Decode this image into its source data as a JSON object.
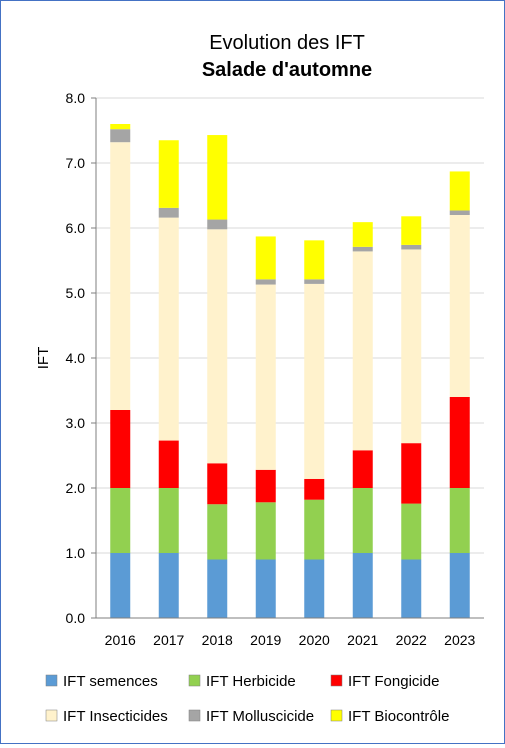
{
  "chart_data": {
    "type": "bar",
    "stacked": true,
    "title": "Evolution des IFT",
    "subtitle": "Salade d'automne",
    "xlabel": "",
    "ylabel": "IFT",
    "ylim": [
      0,
      8
    ],
    "yticks": [
      "0.0",
      "1.0",
      "2.0",
      "3.0",
      "4.0",
      "5.0",
      "6.0",
      "7.0",
      "8.0"
    ],
    "grid": true,
    "legend_position": "bottom",
    "categories": [
      "2016",
      "2017",
      "2018",
      "2019",
      "2020",
      "2021",
      "2022",
      "2023"
    ],
    "series": [
      {
        "name": "IFT semences",
        "color": "#5b9bd5",
        "values": [
          1.0,
          1.0,
          0.9,
          0.9,
          0.9,
          1.0,
          0.9,
          1.0
        ]
      },
      {
        "name": "IFT Herbicide",
        "color": "#92d050",
        "values": [
          1.0,
          1.0,
          0.85,
          0.88,
          0.92,
          1.0,
          0.86,
          1.0
        ]
      },
      {
        "name": "IFT Fongicide",
        "color": "#ff0000",
        "values": [
          1.2,
          0.73,
          0.63,
          0.5,
          0.32,
          0.58,
          0.93,
          1.4
        ]
      },
      {
        "name": "IFT Insecticides",
        "color": "#fff2cc",
        "values": [
          4.12,
          3.43,
          3.6,
          2.85,
          3.0,
          3.06,
          2.98,
          2.8
        ]
      },
      {
        "name": "IFT Molluscicide",
        "color": "#a5a5a5",
        "values": [
          0.2,
          0.15,
          0.15,
          0.08,
          0.07,
          0.07,
          0.07,
          0.07
        ]
      },
      {
        "name": "IFT Biocontrôle",
        "color": "#ffff00",
        "values": [
          0.08,
          1.04,
          1.3,
          0.66,
          0.6,
          0.38,
          0.44,
          0.6
        ]
      }
    ]
  }
}
